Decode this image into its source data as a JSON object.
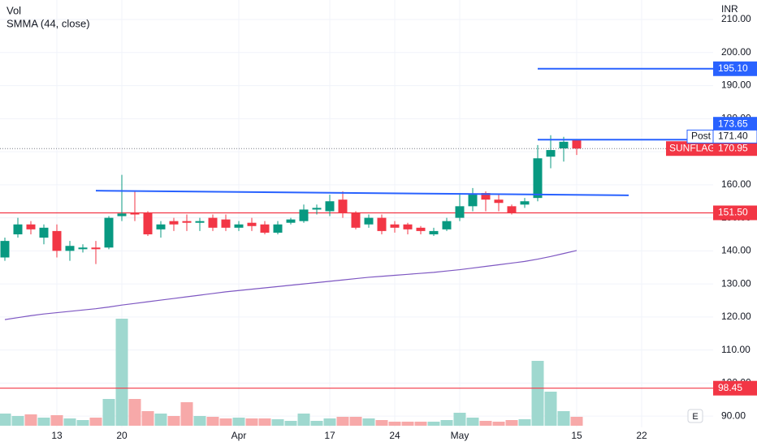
{
  "chart_data": {
    "type": "candlestick",
    "legend": [
      "Vol",
      "SMMA (44, close)"
    ],
    "currency": "INR",
    "categories": [
      null,
      null,
      null,
      null,
      "13",
      null,
      null,
      null,
      null,
      "20",
      null,
      null,
      null,
      null,
      null,
      null,
      null,
      null,
      "Apr",
      null,
      null,
      null,
      null,
      null,
      null,
      "17",
      null,
      null,
      null,
      null,
      "24",
      null,
      null,
      null,
      null,
      "May",
      null,
      null,
      null,
      null,
      null,
      null,
      null,
      null,
      "15",
      null,
      null,
      null,
      null,
      "22"
    ],
    "open": [
      138,
      145,
      148,
      144,
      146,
      140,
      140.5,
      141,
      141,
      150.5,
      151.5,
      151.5,
      146.5,
      149,
      149,
      148.5,
      150,
      149.5,
      147,
      148.5,
      148,
      145.5,
      148.5,
      149,
      152.5,
      152,
      155.5,
      151.5,
      148,
      150,
      148,
      148,
      147,
      145,
      146.5,
      150,
      153.5,
      157.5,
      155.5,
      153.5,
      154,
      156,
      168.5,
      171,
      173.5,
      null,
      null,
      null,
      null,
      null
    ],
    "high": [
      144,
      150,
      149,
      148,
      148,
      143,
      142,
      143,
      150.5,
      163,
      158,
      152,
      149,
      150,
      151,
      150,
      151,
      151,
      149,
      150,
      149,
      149,
      150,
      154,
      154,
      157,
      158,
      152,
      151,
      151,
      149,
      148.5,
      147.5,
      147,
      150,
      157.5,
      159,
      158,
      157,
      154,
      156,
      172,
      175,
      174.5,
      173.7,
      null,
      null,
      null,
      null,
      null
    ],
    "low": [
      137,
      144,
      145,
      142,
      138,
      137,
      139.5,
      136,
      140.5,
      149,
      149,
      144.5,
      144,
      146,
      146,
      146,
      146,
      146,
      146,
      146,
      145,
      145,
      148,
      148.5,
      151,
      150.5,
      150,
      146.5,
      147,
      145,
      145.5,
      145,
      145,
      144.5,
      146,
      149,
      152,
      152,
      152,
      151,
      153,
      155,
      165,
      167,
      169,
      null,
      null,
      null,
      null,
      null
    ],
    "close": [
      143,
      148,
      146.5,
      147,
      140,
      141.5,
      141,
      140.5,
      150,
      151.3,
      151,
      145,
      148,
      148,
      148.5,
      149,
      147,
      147,
      148,
      147.5,
      145.5,
      148,
      149.5,
      152.5,
      153,
      155,
      151.5,
      147,
      150,
      146,
      147,
      146.5,
      146,
      146,
      149,
      153.5,
      157,
      155.5,
      154.5,
      151.5,
      155,
      168,
      170.5,
      173,
      170.95,
      null,
      null,
      null,
      null,
      null
    ],
    "volume": [
      15,
      12,
      14,
      10,
      13,
      9,
      7,
      10,
      33,
      132,
      33,
      18,
      15,
      12,
      29,
      12,
      11,
      9,
      10,
      9,
      9,
      8,
      6,
      15,
      6,
      9,
      11,
      11,
      9,
      7,
      5,
      5,
      5,
      5,
      7,
      16,
      10,
      6,
      5,
      7,
      8,
      80,
      42,
      18,
      11,
      null,
      null,
      null,
      null,
      null
    ],
    "volume_lim": [
      0,
      140
    ],
    "smma": [
      119.2,
      119.8,
      120.4,
      120.9,
      121.3,
      121.7,
      122.1,
      122.5,
      123.0,
      123.6,
      124.1,
      124.6,
      125.1,
      125.6,
      126.1,
      126.6,
      127.1,
      127.6,
      128.0,
      128.4,
      128.8,
      129.2,
      129.6,
      130.0,
      130.4,
      130.8,
      131.2,
      131.6,
      132.0,
      132.3,
      132.6,
      132.9,
      133.2,
      133.5,
      133.9,
      134.3,
      134.8,
      135.3,
      135.8,
      136.3,
      136.8,
      137.5,
      138.3,
      139.2,
      140.1,
      null,
      null,
      null,
      null,
      null
    ],
    "smma_color": "#7e57c2",
    "up_color": "#089981",
    "down_color": "#f23645",
    "volume_up_color": "#9fd8cf",
    "volume_down_color": "#f7a9a9",
    "ylim": [
      86.6,
      215.9
    ],
    "yticks": [
      {
        "value": 90,
        "label": "90.00"
      },
      {
        "value": 100,
        "label": "100.00"
      },
      {
        "value": 110,
        "label": "110.00"
      },
      {
        "value": 120,
        "label": "120.00"
      },
      {
        "value": 130,
        "label": "130.00"
      },
      {
        "value": 140,
        "label": "140.00"
      },
      {
        "value": 150,
        "label": "150.00"
      },
      {
        "value": 160,
        "label": "160.00"
      },
      {
        "value": 170,
        "label": "170.00"
      },
      {
        "value": 180,
        "label": "180.00"
      },
      {
        "value": 190,
        "label": "190.00"
      },
      {
        "value": 200,
        "label": "200.00"
      },
      {
        "value": 210,
        "label": "210.00"
      }
    ],
    "grid": true,
    "hlines": [
      {
        "value": 151.5,
        "label": "151.50",
        "color": "#f23645"
      },
      {
        "value": 98.45,
        "label": "98.45",
        "color": "#f23645"
      }
    ],
    "rays": [
      {
        "value": 195.1,
        "label": "195.10",
        "start": 41,
        "color": "#2962ff"
      },
      {
        "value": 173.65,
        "label": "173.65",
        "start": 41,
        "color": "#2962ff"
      }
    ],
    "trendline": {
      "start": 7,
      "end": 48,
      "from": 158.2,
      "to": 156.8,
      "color": "#2962ff"
    },
    "post": {
      "name": "Post",
      "value": 171.4,
      "label": "171.40",
      "color": "#2962ff"
    },
    "last": {
      "name": "SUNFLAG",
      "value": 170.95,
      "label": "170.95",
      "color": "#f23645"
    },
    "earnings_marker": "E"
  }
}
